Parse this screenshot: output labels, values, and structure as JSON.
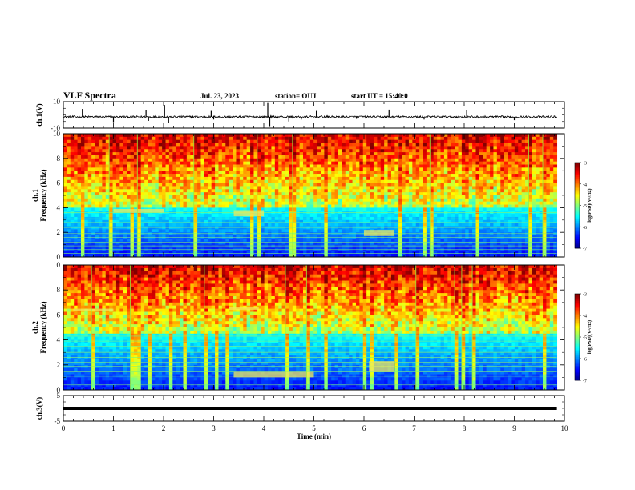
{
  "header": {
    "title": "VLF Spectra",
    "date": "Jul. 23, 2023",
    "station": "station= OUJ",
    "start": "start UT = 15:40:0"
  },
  "chart_data": [
    {
      "type": "line",
      "name": "ch1-waveform",
      "ylabel": "ch.1(V)",
      "ylim": [
        -10,
        10
      ],
      "yticks": [
        "10",
        "-10"
      ],
      "xlim": [
        0,
        10
      ],
      "baseline": -1.5,
      "noise_amplitude": 0.8,
      "spikes": [
        {
          "x": 0.38,
          "y": 4.5
        },
        {
          "x": 1.0,
          "y": -5.5
        },
        {
          "x": 1.65,
          "y": 3.5
        },
        {
          "x": 1.7,
          "y": -4.5
        },
        {
          "x": 2.02,
          "y": 7.5
        },
        {
          "x": 2.1,
          "y": -6.0
        },
        {
          "x": 2.95,
          "y": 3.0
        },
        {
          "x": 3.0,
          "y": -3.5
        },
        {
          "x": 4.08,
          "y": 9.0
        },
        {
          "x": 4.12,
          "y": -8.5
        },
        {
          "x": 4.5,
          "y": -5.0
        },
        {
          "x": 4.75,
          "y": -3.5
        },
        {
          "x": 5.05,
          "y": 3.0
        },
        {
          "x": 5.85,
          "y": -3.0
        },
        {
          "x": 6.5,
          "y": 4.0
        },
        {
          "x": 7.2,
          "y": -3.5
        },
        {
          "x": 8.05,
          "y": 3.5
        },
        {
          "x": 9.0,
          "y": -4.0
        }
      ]
    },
    {
      "type": "heatmap",
      "name": "ch1-spectrogram",
      "ylabel": "ch.1\nFrequency (kHz)",
      "ylim": [
        0,
        10
      ],
      "yticks": [
        "0",
        "2",
        "4",
        "6",
        "8",
        "10"
      ],
      "xlim": [
        0,
        9.85
      ],
      "colorbar": {
        "label": "log(PSD)(V²/Hz)",
        "range": [
          -7,
          -3
        ],
        "ticks": [
          "-3",
          "-4",
          "-5",
          "-6",
          "-7"
        ]
      },
      "low_band_top_khz": 4.0,
      "steady_lines_khz": [
        0.3,
        0.6,
        0.9,
        1.2,
        1.6,
        1.9,
        2.1,
        2.4,
        2.8,
        3.1,
        3.4,
        3.6
      ],
      "bright_events": [
        {
          "x_start": 6.0,
          "x_end": 6.6,
          "f_low": 1.7,
          "f_high": 2.2
        },
        {
          "x_start": 3.4,
          "x_end": 4.0,
          "f_low": 3.3,
          "f_high": 3.8
        },
        {
          "x_start": 1.0,
          "x_end": 2.0,
          "f_low": 3.6,
          "f_high": 3.9
        }
      ]
    },
    {
      "type": "heatmap",
      "name": "ch2-spectrogram",
      "ylabel": "ch.2\nFrequency (kHz)",
      "ylim": [
        0,
        10
      ],
      "yticks": [
        "0",
        "2",
        "4",
        "6",
        "8",
        "10"
      ],
      "xlim": [
        0,
        9.85
      ],
      "colorbar": {
        "label": "log(PSD)(V²/Hz)",
        "range": [
          -7,
          -3
        ],
        "ticks": [
          "-3",
          "-4",
          "-5",
          "-6",
          "-7"
        ]
      },
      "low_band_top_khz": 4.5,
      "steady_lines_khz": [
        0.4,
        0.8,
        1.1,
        1.5,
        1.9,
        2.2,
        2.6,
        3.0,
        3.5,
        3.9,
        4.3
      ],
      "bright_events": [
        {
          "x_start": 6.1,
          "x_end": 6.6,
          "f_low": 1.5,
          "f_high": 2.3
        },
        {
          "x_start": 3.4,
          "x_end": 5.0,
          "f_low": 1.0,
          "f_high": 1.5
        },
        {
          "x_start": 3.3,
          "x_end": 3.9,
          "f_low": 6.4,
          "f_high": 6.6
        },
        {
          "x_start": 0.2,
          "x_end": 1.0,
          "f_low": 6.3,
          "f_high": 6.5
        }
      ]
    },
    {
      "type": "line",
      "name": "ch3-waveform",
      "ylabel": "ch.3(V)",
      "ylim": [
        -5,
        5
      ],
      "yticks": [
        "5",
        "-5"
      ],
      "xlim": [
        0,
        10
      ],
      "value": 0,
      "xlabel": "Time (min)",
      "xticks": [
        "0",
        "1",
        "2",
        "3",
        "4",
        "5",
        "6",
        "7",
        "8",
        "9",
        "10"
      ]
    }
  ]
}
